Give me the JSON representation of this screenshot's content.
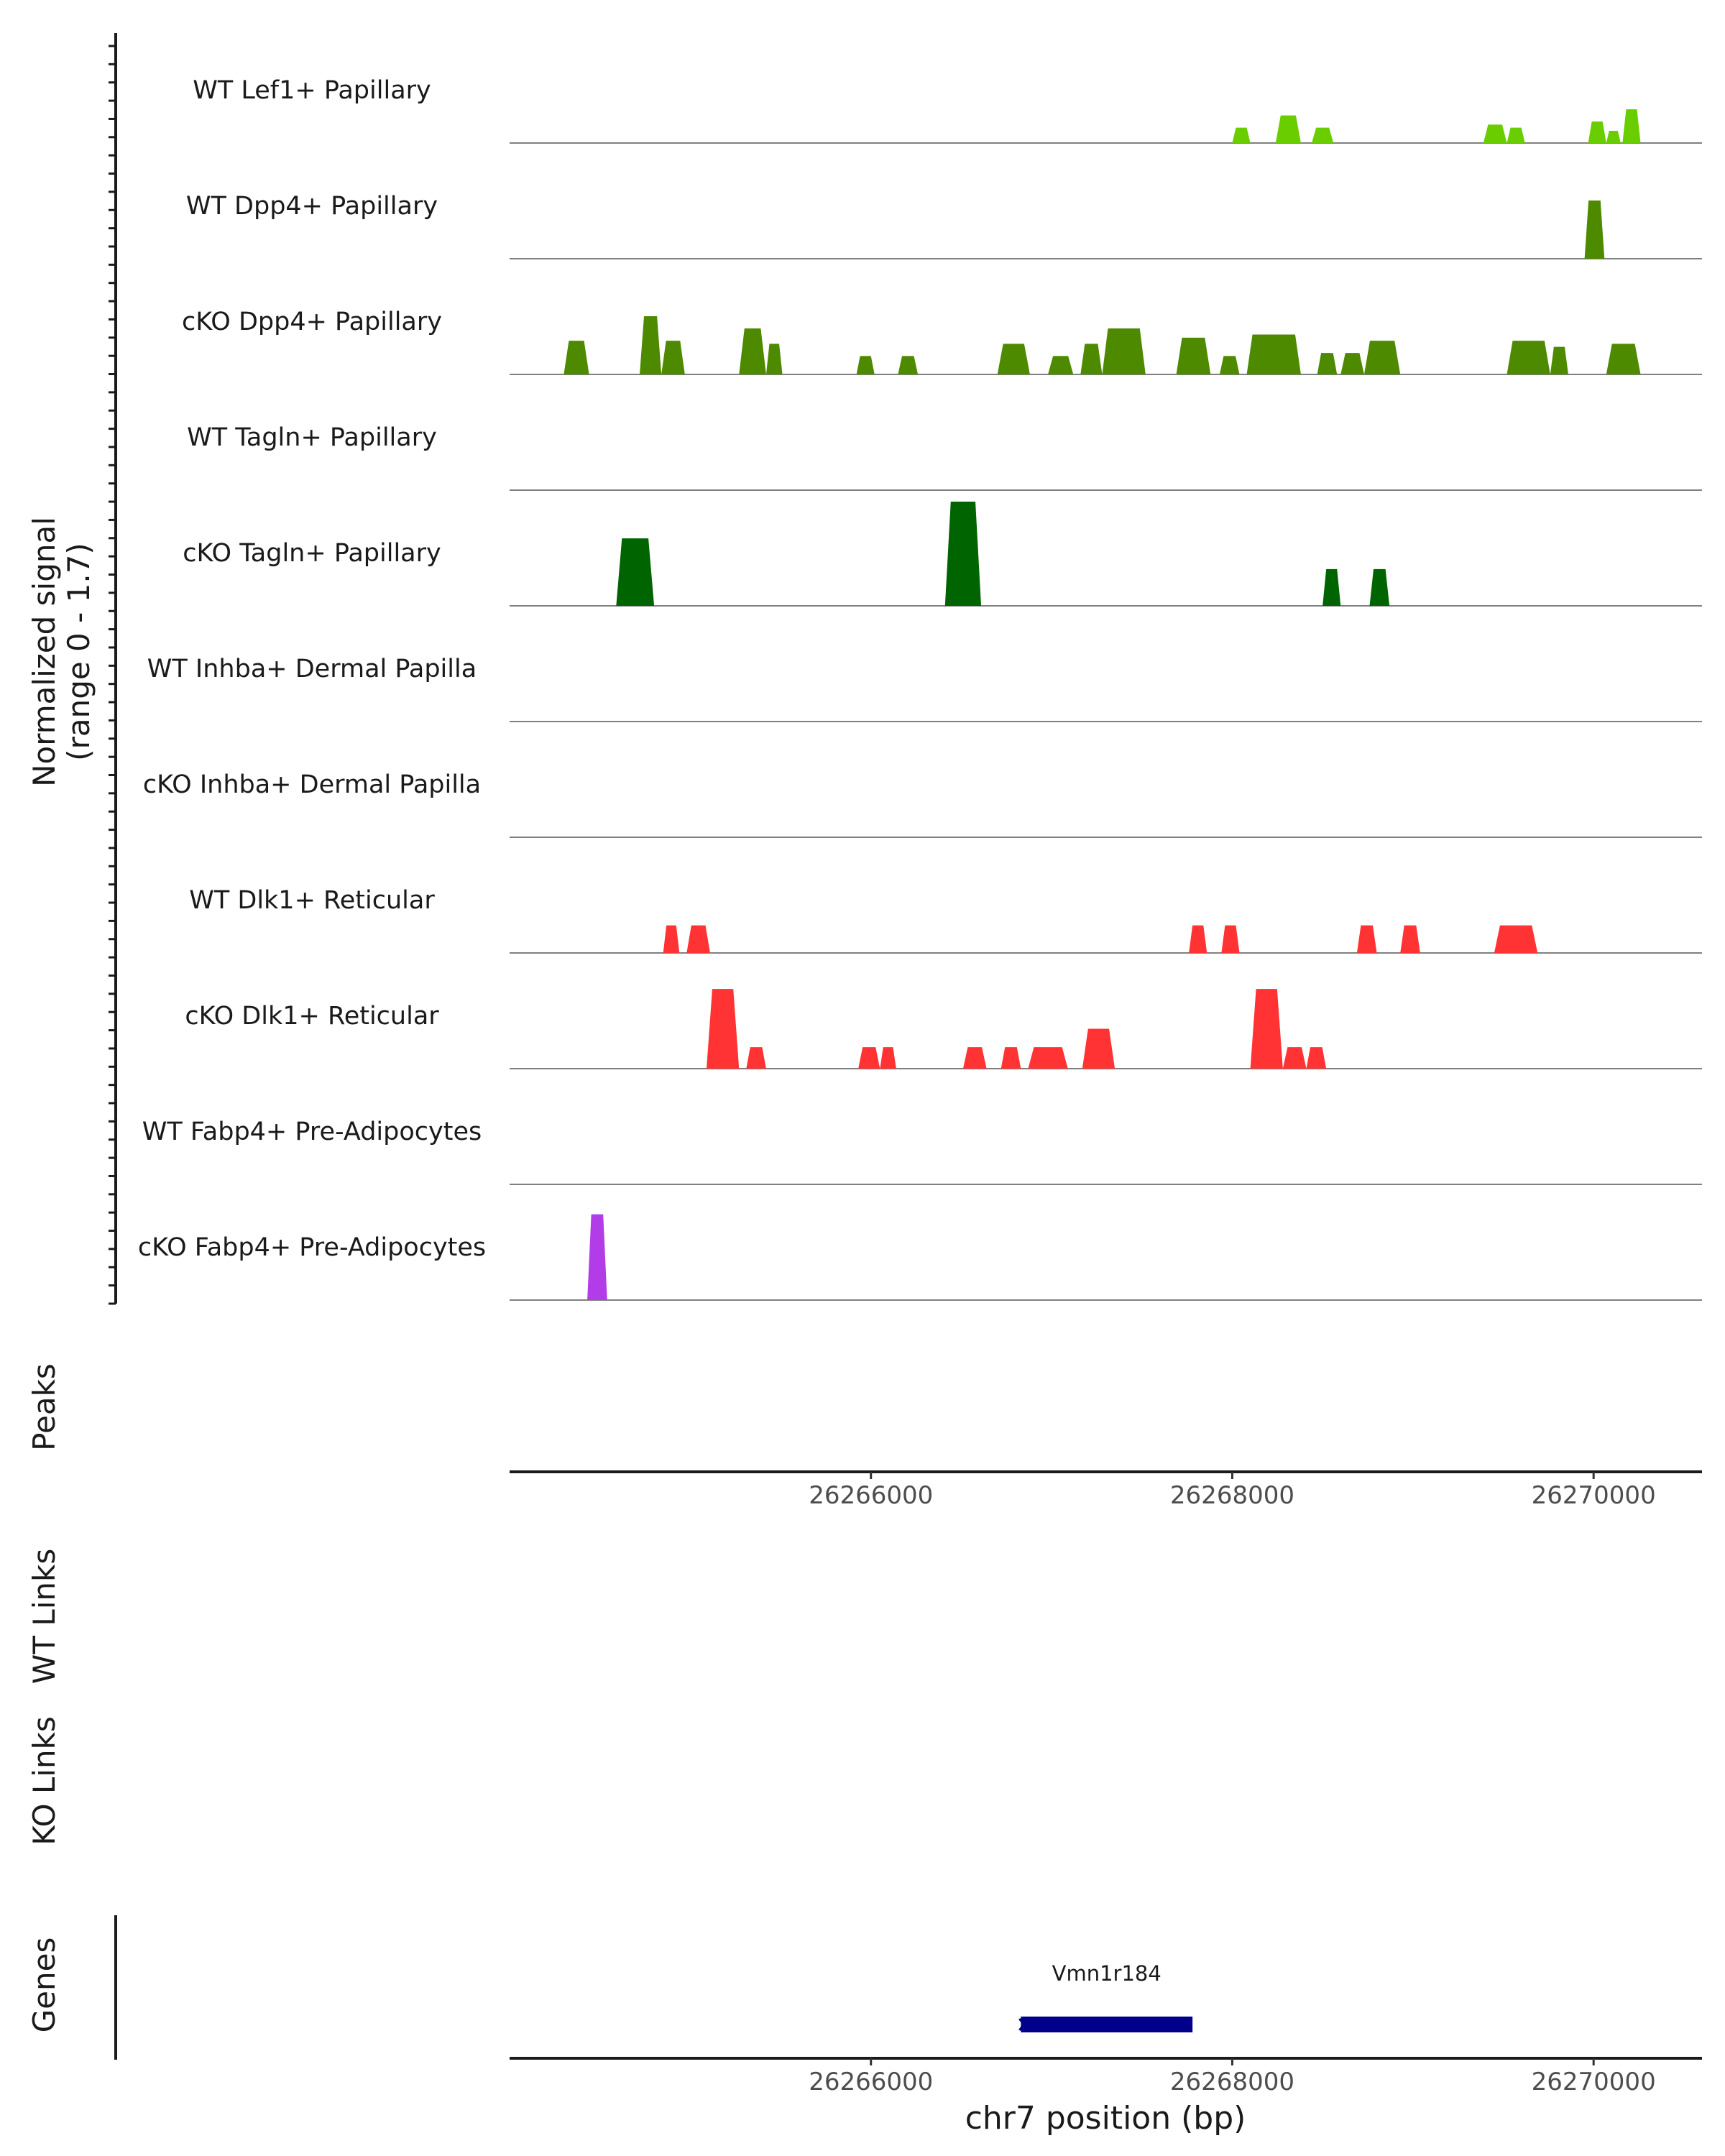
{
  "chart_data": {
    "type": "area",
    "chromosome": "chr7",
    "xlim": [
      26264000,
      26270600
    ],
    "coverage": {
      "ylabel": "Normalized signal",
      "range_label": "(range 0 - 1.7)",
      "ylim": [
        0,
        1.7
      ],
      "tracks": [
        {
          "name": "WT Lef1+ Papillary",
          "color": "#6acd00",
          "peaks": [
            [
              26268000,
              26268100,
              0.25
            ],
            [
              26268240,
              26268380,
              0.45
            ],
            [
              26268440,
              26268560,
              0.25
            ],
            [
              26269390,
              26269520,
              0.3
            ],
            [
              26269520,
              26269620,
              0.25
            ],
            [
              26269970,
              26270070,
              0.35
            ],
            [
              26270070,
              26270150,
              0.2
            ],
            [
              26270160,
              26270260,
              0.55
            ]
          ]
        },
        {
          "name": "WT Dpp4+ Papillary",
          "color": "#4e8a00",
          "peaks": [
            [
              26269950,
              26270060,
              0.95
            ]
          ]
        },
        {
          "name": "cKO Dpp4+ Papillary",
          "color": "#4e8a00",
          "peaks": [
            [
              26264300,
              26264440,
              0.55
            ],
            [
              26264720,
              26264840,
              0.95
            ],
            [
              26264840,
              26264970,
              0.55
            ],
            [
              26265270,
              26265420,
              0.75
            ],
            [
              26265420,
              26265510,
              0.5
            ],
            [
              26265920,
              26266020,
              0.3
            ],
            [
              26266150,
              26266260,
              0.3
            ],
            [
              26266700,
              26266880,
              0.5
            ],
            [
              26266980,
              26267120,
              0.3
            ],
            [
              26267160,
              26267280,
              0.5
            ],
            [
              26267280,
              26267520,
              0.75
            ],
            [
              26267690,
              26267880,
              0.6
            ],
            [
              26267930,
              26268040,
              0.3
            ],
            [
              26268080,
              26268380,
              0.65
            ],
            [
              26268470,
              26268580,
              0.35
            ],
            [
              26268600,
              26268730,
              0.35
            ],
            [
              26268730,
              26268930,
              0.55
            ],
            [
              26269520,
              26269760,
              0.55
            ],
            [
              26269760,
              26269860,
              0.45
            ],
            [
              26270070,
              26270260,
              0.5
            ]
          ]
        },
        {
          "name": "WT Tagln+ Papillary",
          "color": "#006400",
          "peaks": []
        },
        {
          "name": "cKO Tagln+ Papillary",
          "color": "#006400",
          "peaks": [
            [
              26264590,
              26264800,
              1.1
            ],
            [
              26266410,
              26266610,
              1.7
            ],
            [
              26268500,
              26268600,
              0.6
            ],
            [
              26268760,
              26268870,
              0.6
            ]
          ]
        },
        {
          "name": "WT Inhba+ Dermal Papilla",
          "color": "#1a4d1a",
          "peaks": []
        },
        {
          "name": "cKO Inhba+ Dermal Papilla",
          "color": "#1a4d1a",
          "peaks": []
        },
        {
          "name": "WT Dlk1+ Reticular",
          "color": "#ff3333",
          "peaks": [
            [
              26264850,
              26264940,
              0.45
            ],
            [
              26264980,
              26265110,
              0.45
            ],
            [
              26267760,
              26267860,
              0.45
            ],
            [
              26267940,
              26268040,
              0.45
            ],
            [
              26268690,
              26268800,
              0.45
            ],
            [
              26268930,
              26269040,
              0.45
            ],
            [
              26269450,
              26269690,
              0.45
            ]
          ]
        },
        {
          "name": "cKO Dlk1+ Reticular",
          "color": "#ff3333",
          "peaks": [
            [
              26265090,
              26265270,
              1.3
            ],
            [
              26265310,
              26265420,
              0.35
            ],
            [
              26265930,
              26266050,
              0.35
            ],
            [
              26266050,
              26266140,
              0.35
            ],
            [
              26266510,
              26266640,
              0.35
            ],
            [
              26266720,
              26266830,
              0.35
            ],
            [
              26266870,
              26267090,
              0.35
            ],
            [
              26267170,
              26267350,
              0.65
            ],
            [
              26268100,
              26268280,
              1.3
            ],
            [
              26268280,
              26268410,
              0.35
            ],
            [
              26268410,
              26268520,
              0.35
            ]
          ]
        },
        {
          "name": "WT Fabp4+ Pre-Adipocytes",
          "color": "#b23de8",
          "peaks": []
        },
        {
          "name": "cKO Fabp4+ Pre-Adipocytes",
          "color": "#b23de8",
          "peaks": [
            [
              26264430,
              26264540,
              1.4
            ]
          ]
        }
      ]
    },
    "peaks_label": "Peaks",
    "wt_links_label": "WT Links",
    "ko_links_label": "KO Links",
    "genes_label": "Genes",
    "x_ticks": [
      26266000,
      26268000,
      26270000
    ],
    "x_tick_labels": [
      "26266000",
      "26268000",
      "26270000"
    ],
    "xlabel": "chr7 position (bp)",
    "genes": [
      {
        "name": "Vmn1r184",
        "start": 26266830,
        "end": 26267780,
        "strand": "-",
        "color": "#00008b"
      }
    ]
  }
}
